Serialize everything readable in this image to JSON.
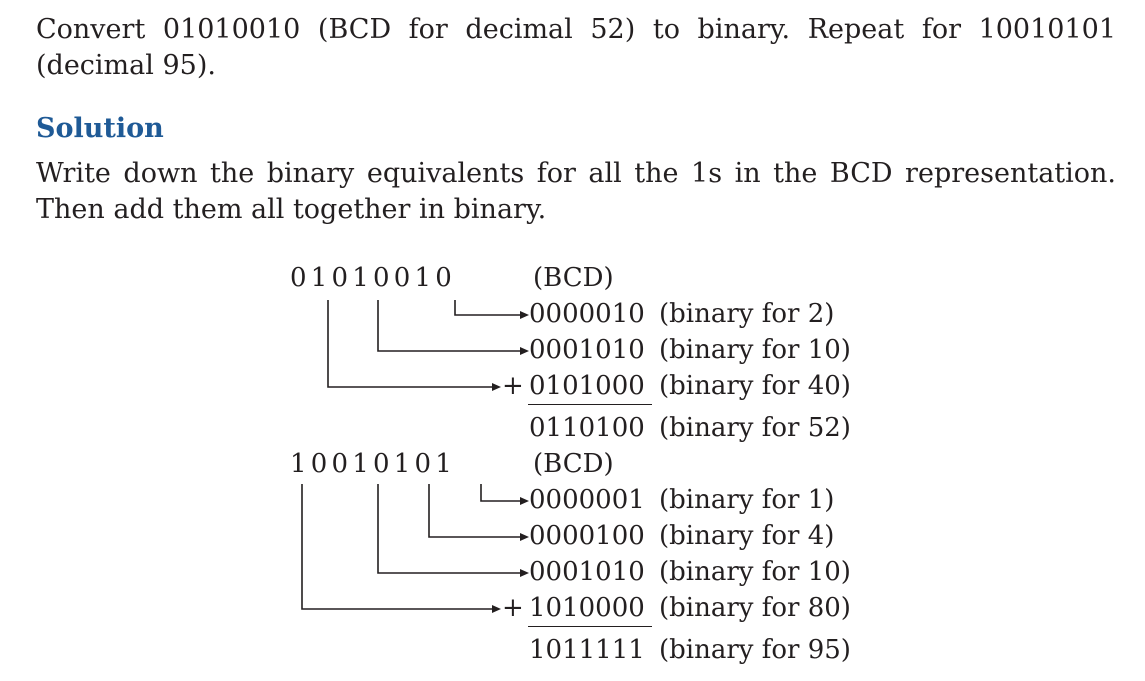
{
  "problem": "Convert 01010010 (BCD for decimal 52) to binary. Repeat for 10010101 (decimal 95).",
  "heading": "Solution",
  "explanation": "Write down the binary equivalents for all the 1s in the BCD representation. Then add them all together in binary.",
  "example1": {
    "bcd": "01010010",
    "bcd_label": "(BCD)",
    "rows": [
      {
        "bits": "0000010",
        "label": "(binary for 2)"
      },
      {
        "bits": "0001010",
        "label": "(binary for 10)"
      },
      {
        "bits": "0101000",
        "label": "(binary for 40)"
      }
    ],
    "plus": "+",
    "result": {
      "bits": "0110100",
      "label": "(binary for 52)"
    }
  },
  "example2": {
    "bcd": "10010101",
    "bcd_label": "(BCD)",
    "rows": [
      {
        "bits": "0000001",
        "label": "(binary for 1)"
      },
      {
        "bits": "0000100",
        "label": "(binary for 4)"
      },
      {
        "bits": "0001010",
        "label": "(binary for 10)"
      },
      {
        "bits": "1010000",
        "label": "(binary for 80)"
      }
    ],
    "plus": "+",
    "result": {
      "bits": "1011111",
      "label": "(binary for 95)"
    }
  }
}
